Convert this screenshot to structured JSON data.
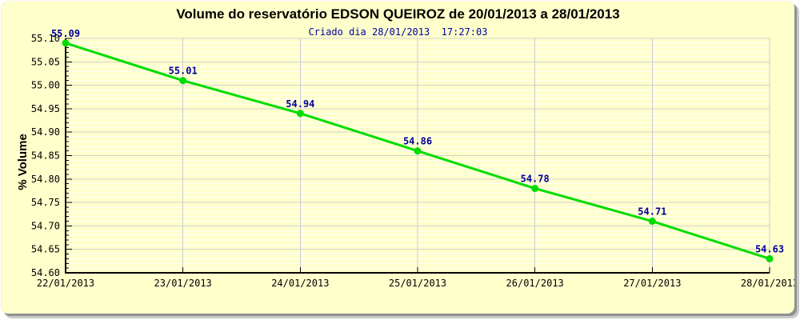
{
  "page": {
    "background_color": "#FFFFCC",
    "frame_shadow_dark": "#8f8f8f",
    "frame_shadow_light": "#c9c9c9"
  },
  "chart_data": {
    "type": "line",
    "title": "Volume do reservatório EDSON QUEIROZ de 20/01/2013 a 28/01/2013",
    "subtitle": "Criado dia 28/01/2013  17:27:03",
    "ylabel": "% Volume",
    "xlabel": "",
    "x": [
      "22/01/2013",
      "23/01/2013",
      "24/01/2013",
      "25/01/2013",
      "26/01/2013",
      "27/01/2013",
      "28/01/2013"
    ],
    "series": [
      {
        "name": "% Volume",
        "values": [
          55.09,
          55.01,
          54.94,
          54.86,
          54.78,
          54.71,
          54.63
        ]
      }
    ],
    "point_labels": [
      "55.09",
      "55.01",
      "54.94",
      "54.86",
      "54.78",
      "54.71",
      "54.63"
    ],
    "ylim": [
      54.6,
      55.1
    ],
    "ytick_major": 0.05,
    "ytick_minor": 0.01,
    "grid": true,
    "legend": "none",
    "colors": {
      "line": "#00DC00",
      "marker": "#00DC00",
      "point_label": "#000099",
      "subtitle": "#000099",
      "title": "#000000",
      "axis": "#000000",
      "grid_minor": "#FFFFFF",
      "grid_major": "#d2d2d2",
      "grid_vertical": "#c9c9da",
      "background": "#FFFFCC"
    }
  }
}
